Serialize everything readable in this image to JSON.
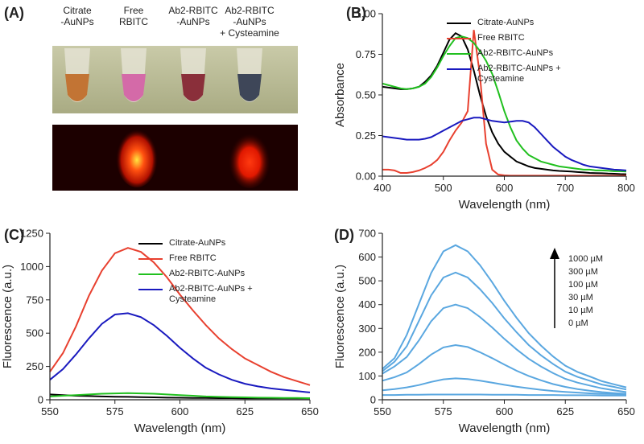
{
  "photo_panel": {
    "panel_label": "(A)",
    "tubes": [
      {
        "lines": [
          "Citrate",
          "-AuNPs"
        ]
      },
      {
        "lines": [
          "Free",
          "RBITC"
        ]
      },
      {
        "lines": [
          "Ab2-RBITC",
          "-AuNPs"
        ]
      },
      {
        "lines": [
          "Ab2-RBITC",
          "-AuNPs",
          "+ Cysteamine"
        ]
      }
    ]
  },
  "chart_data": [
    {
      "type": "line",
      "panel_label": "(B)",
      "x_label": "Wavelength (nm)",
      "y_label": "Absorbance",
      "legend": "upper right",
      "x": [
        400,
        410,
        420,
        430,
        440,
        450,
        460,
        470,
        480,
        490,
        500,
        510,
        520,
        530,
        540,
        550,
        560,
        570,
        580,
        590,
        600,
        610,
        620,
        630,
        640,
        650,
        660,
        670,
        680,
        690,
        700,
        710,
        720,
        730,
        740,
        750,
        760,
        770,
        780,
        790,
        800
      ],
      "xlim": [
        400,
        800
      ],
      "xticks": [
        400,
        500,
        600,
        700,
        800
      ],
      "ylim": [
        0,
        1
      ],
      "yticks": [
        {
          "value": 0,
          "label": "0.00"
        },
        {
          "value": 0.25,
          "label": "0.25"
        },
        {
          "value": 0.5,
          "label": "0.50"
        },
        {
          "value": 0.75,
          "label": "0.75"
        },
        {
          "value": 1,
          "label": "1.00"
        }
      ],
      "series": [
        {
          "name": "Citrate-AuNPs",
          "color": "#000000",
          "values": [
            0.55,
            0.545,
            0.54,
            0.535,
            0.535,
            0.54,
            0.55,
            0.58,
            0.62,
            0.68,
            0.76,
            0.84,
            0.88,
            0.86,
            0.78,
            0.65,
            0.5,
            0.37,
            0.27,
            0.2,
            0.15,
            0.12,
            0.09,
            0.075,
            0.06,
            0.05,
            0.045,
            0.04,
            0.035,
            0.032,
            0.03,
            0.028,
            0.025,
            0.023,
            0.02,
            0.019,
            0.018,
            0.016,
            0.015,
            0.013,
            0.012
          ]
        },
        {
          "name": "Free RBITC",
          "color": "#e8402f",
          "values": [
            0.04,
            0.04,
            0.035,
            0.02,
            0.02,
            0.025,
            0.035,
            0.05,
            0.07,
            0.1,
            0.15,
            0.22,
            0.28,
            0.33,
            0.4,
            0.9,
            0.62,
            0.2,
            0.04,
            0.01,
            0.005,
            0.003,
            0.003,
            0.003,
            0.003,
            0.003,
            0.003,
            0.003,
            0.003,
            0.003,
            0.003,
            0.003,
            0.003,
            0.003,
            0.003,
            0.003,
            0.003,
            0.003,
            0.003,
            0.003,
            0.003
          ]
        },
        {
          "name": "Ab2-RBITC-AuNPs",
          "color": "#21c01f",
          "values": [
            0.57,
            0.56,
            0.55,
            0.54,
            0.535,
            0.54,
            0.55,
            0.57,
            0.61,
            0.67,
            0.74,
            0.8,
            0.85,
            0.86,
            0.85,
            0.82,
            0.77,
            0.71,
            0.63,
            0.52,
            0.4,
            0.3,
            0.22,
            0.17,
            0.13,
            0.11,
            0.09,
            0.08,
            0.07,
            0.06,
            0.055,
            0.05,
            0.045,
            0.04,
            0.04,
            0.035,
            0.035,
            0.033,
            0.03,
            0.03,
            0.028
          ]
        },
        {
          "name": "Ab2-RBITC-AuNPs + Cysteamine",
          "color": "#1a1abf",
          "values": [
            0.245,
            0.24,
            0.235,
            0.23,
            0.225,
            0.225,
            0.225,
            0.23,
            0.24,
            0.26,
            0.28,
            0.3,
            0.32,
            0.34,
            0.35,
            0.36,
            0.36,
            0.35,
            0.34,
            0.335,
            0.33,
            0.335,
            0.34,
            0.34,
            0.33,
            0.3,
            0.26,
            0.22,
            0.18,
            0.15,
            0.12,
            0.1,
            0.085,
            0.07,
            0.06,
            0.055,
            0.05,
            0.045,
            0.04,
            0.038,
            0.035
          ]
        }
      ]
    },
    {
      "type": "line",
      "panel_label": "(C)",
      "x_label": "Wavelength (nm)",
      "y_label": "Fluorescence (a.u.)",
      "legend": "upper right",
      "x": [
        550,
        555,
        560,
        565,
        570,
        575,
        580,
        585,
        590,
        595,
        600,
        605,
        610,
        615,
        620,
        625,
        630,
        635,
        640,
        645,
        650
      ],
      "xlim": [
        550,
        650
      ],
      "xticks": [
        550,
        575,
        600,
        625,
        650
      ],
      "ylim": [
        0,
        1250
      ],
      "yticks": [
        0,
        250,
        500,
        750,
        1000,
        1250
      ],
      "series": [
        {
          "name": "Citrate-AuNPs",
          "color": "#000000",
          "values": [
            40,
            35,
            30,
            28,
            25,
            23,
            22,
            20,
            18,
            16,
            15,
            14,
            13,
            12,
            12,
            11,
            11,
            10,
            10,
            10,
            10
          ]
        },
        {
          "name": "Free RBITC",
          "color": "#e8402f",
          "values": [
            210,
            350,
            550,
            780,
            970,
            1100,
            1140,
            1110,
            1030,
            920,
            790,
            670,
            560,
            460,
            380,
            310,
            260,
            210,
            170,
            140,
            110
          ]
        },
        {
          "name": "Ab2-RBITC-AuNPs",
          "color": "#21c01f",
          "values": [
            25,
            30,
            35,
            40,
            45,
            48,
            50,
            48,
            45,
            40,
            35,
            30,
            25,
            22,
            20,
            18,
            16,
            15,
            14,
            13,
            12
          ]
        },
        {
          "name": "Ab2-RBITC-AuNPs + Cysteamine",
          "color": "#1a1abf",
          "values": [
            150,
            230,
            340,
            460,
            570,
            640,
            650,
            620,
            560,
            480,
            390,
            310,
            240,
            190,
            150,
            120,
            100,
            85,
            75,
            65,
            55
          ]
        }
      ]
    },
    {
      "type": "line",
      "panel_label": "(D)",
      "x_label": "Wavelength (nm)",
      "y_label": "Fluorescence (a.u.)",
      "legend": "upper right",
      "x": [
        550,
        555,
        560,
        565,
        570,
        575,
        580,
        585,
        590,
        595,
        600,
        605,
        610,
        615,
        620,
        625,
        630,
        635,
        640,
        645,
        650
      ],
      "xlim": [
        550,
        650
      ],
      "xticks": [
        550,
        575,
        600,
        625,
        650
      ],
      "ylim": [
        0,
        700
      ],
      "yticks": [
        0,
        100,
        200,
        300,
        400,
        500,
        600,
        700
      ],
      "series": [
        {
          "name": "1000 µM",
          "color": "#5aa7e0",
          "values": [
            130,
            175,
            273,
            403,
            533,
            624,
            650,
            624,
            566,
            494,
            416,
            345,
            280,
            228,
            182,
            143,
            117,
            98,
            78,
            65,
            52
          ]
        },
        {
          "name": "300 µM",
          "color": "#5aa7e0",
          "values": [
            120,
            160,
            225,
            332,
            439,
            514,
            535,
            514,
            465,
            407,
            342,
            284,
            230,
            187,
            150,
            118,
            96,
            80,
            64,
            54,
            43
          ]
        },
        {
          "name": "100 µM",
          "color": "#5aa7e0",
          "values": [
            110,
            140,
            180,
            250,
            330,
            385,
            400,
            385,
            348,
            304,
            256,
            212,
            172,
            140,
            112,
            88,
            72,
            60,
            48,
            40,
            32
          ]
        },
        {
          "name": "30 µM",
          "color": "#5aa7e0",
          "values": [
            80,
            95,
            115,
            150,
            190,
            220,
            230,
            222,
            200,
            175,
            148,
            122,
            100,
            82,
            66,
            54,
            45,
            38,
            32,
            28,
            25
          ]
        },
        {
          "name": "10 µM",
          "color": "#5aa7e0",
          "values": [
            40,
            45,
            52,
            62,
            75,
            86,
            90,
            87,
            80,
            72,
            63,
            55,
            48,
            42,
            37,
            33,
            30,
            27,
            25,
            24,
            23
          ]
        },
        {
          "name": "0 µM",
          "color": "#5aa7e0",
          "values": [
            20,
            20,
            21,
            21,
            22,
            22,
            22,
            22,
            22,
            21,
            21,
            21,
            20,
            20,
            20,
            19,
            19,
            19,
            18,
            18,
            18
          ]
        }
      ]
    }
  ]
}
